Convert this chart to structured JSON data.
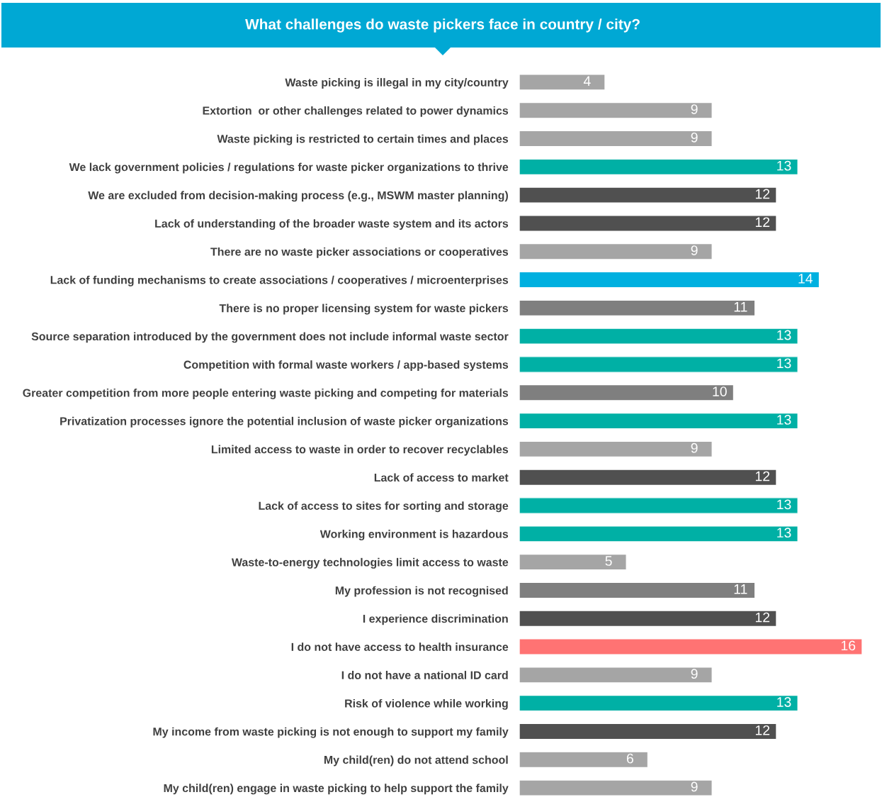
{
  "chart_data": {
    "type": "bar",
    "orientation": "horizontal",
    "title": "What challenges do waste pickers face in country / city?",
    "categories": [
      "Waste picking is illegal in my city/country",
      "Extortion  or other challenges related to power dynamics",
      "Waste picking is restricted to certain times and places",
      "We lack government policies / regulations for waste picker organizations to thrive",
      "We are excluded from decision-making process (e.g., MSWM master planning)",
      "Lack of understanding of the broader waste system and its actors",
      "There are no waste picker associations or cooperatives",
      "Lack of funding mechanisms to create associations / cooperatives / microenterprises",
      "There is no proper licensing system for waste pickers",
      "Source separation introduced by the government does not include informal waste sector",
      "Competition with formal waste workers / app-based systems",
      "Greater competition from more people entering waste picking and competing for materials",
      "Privatization processes ignore the potential inclusion of waste picker organizations",
      "Limited access to waste in order to recover recyclables",
      "Lack of access to market",
      "Lack of access to sites for sorting and storage",
      "Working environment is hazardous",
      "Waste-to-energy technologies limit access to waste",
      "My profession is not recognised",
      "I experience discrimination",
      "I do not have access to health insurance",
      "I do not have a national ID card",
      "Risk of violence while working",
      "My income from waste picking is not enough to support my family",
      "My child(ren) do not attend school",
      "My child(ren) engage in waste picking to help support the family"
    ],
    "values": [
      4,
      9,
      9,
      13,
      12,
      12,
      9,
      14,
      11,
      13,
      13,
      10,
      13,
      9,
      12,
      13,
      13,
      5,
      11,
      12,
      16,
      9,
      13,
      12,
      6,
      9
    ],
    "colors": [
      "#a5a5a5",
      "#a5a5a5",
      "#a5a5a5",
      "#00b0a5",
      "#505050",
      "#505050",
      "#a5a5a5",
      "#00b0e0",
      "#7f7f7f",
      "#00b0a5",
      "#00b0a5",
      "#7f7f7f",
      "#00b0a5",
      "#a5a5a5",
      "#505050",
      "#00b0a5",
      "#00b0a5",
      "#a5a5a5",
      "#7f7f7f",
      "#505050",
      "#ff7373",
      "#a5a5a5",
      "#00b0a5",
      "#505050",
      "#a5a5a5",
      "#a5a5a5"
    ],
    "data_labels": true,
    "grid": false,
    "legend": false
  }
}
